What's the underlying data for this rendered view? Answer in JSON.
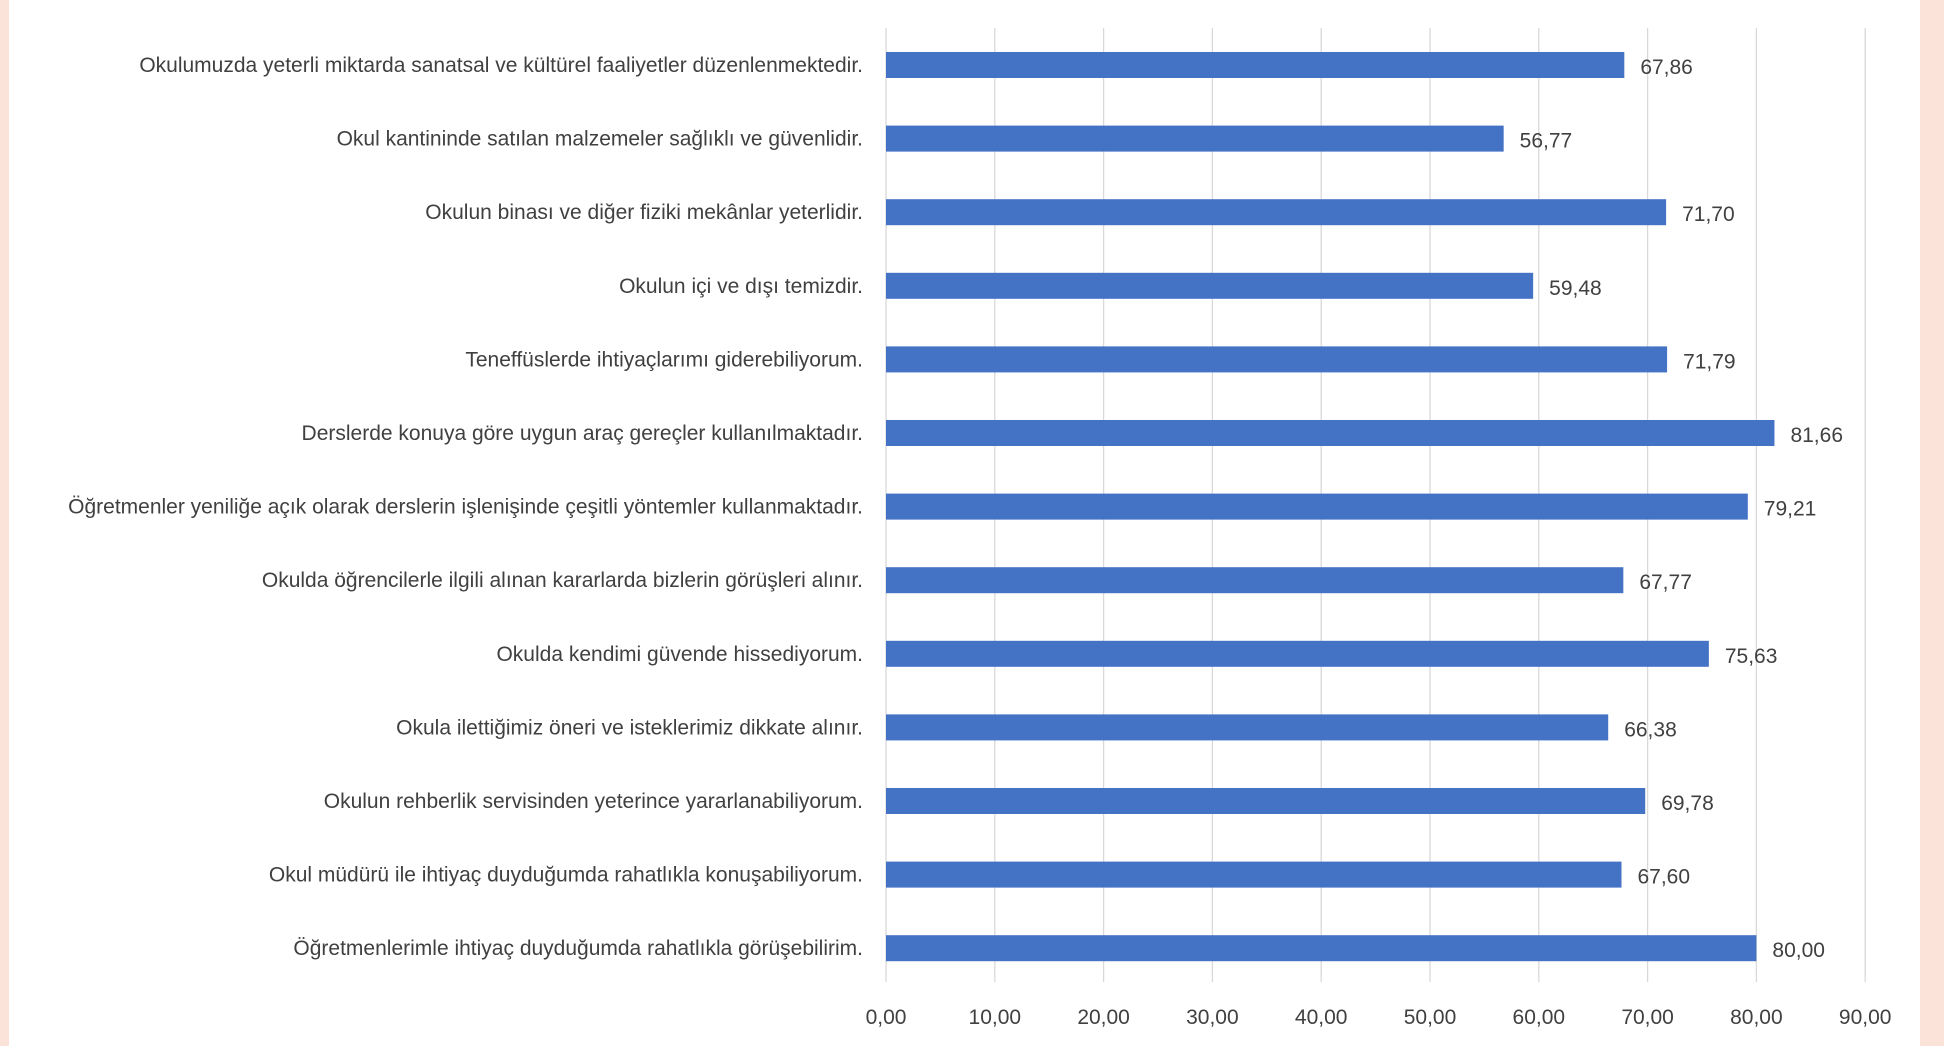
{
  "chart_data": {
    "type": "bar",
    "orientation": "horizontal",
    "bar_color": "#4472c4",
    "categories": [
      "Okulumuzda yeterli miktarda sanatsal ve kültürel faaliyetler düzenlenmektedir.",
      "Okul kantininde satılan malzemeler sağlıklı ve güvenlidir.",
      "Okulun binası ve diğer fiziki mekânlar yeterlidir.",
      "Okulun içi ve dışı temizdir.",
      "Teneffüslerde ihtiyaçlarımı giderebiliyorum.",
      "Derslerde konuya göre uygun araç gereçler kullanılmaktadır.",
      "Öğretmenler yeniliğe açık olarak derslerin işlenişinde çeşitli yöntemler kullanmaktadır.",
      "Okulda öğrencilerle ilgili alınan kararlarda bizlerin görüşleri alınır.",
      "Okulda kendimi güvende hissediyorum.",
      "Okula ilettiğimiz öneri ve isteklerimiz dikkate alınır.",
      "Okulun rehberlik servisinden yeterince yararlanabiliyorum.",
      "Okul müdürü ile ihtiyaç duyduğumda rahatlıkla konuşabiliyorum.",
      "Öğretmenlerimle ihtiyaç duyduğumda rahatlıkla görüşebilirim."
    ],
    "values": [
      67.86,
      56.77,
      71.7,
      59.48,
      71.79,
      81.66,
      79.21,
      67.77,
      75.63,
      66.38,
      69.78,
      67.6,
      80.0
    ],
    "value_labels": [
      "67,86",
      "56,77",
      "71,70",
      "59,48",
      "71,79",
      "81,66",
      "79,21",
      "67,77",
      "75,63",
      "66,38",
      "69,78",
      "67,60",
      "80,00"
    ],
    "x_ticks": [
      0,
      10,
      20,
      30,
      40,
      50,
      60,
      70,
      80,
      90
    ],
    "x_tick_labels": [
      "0,00",
      "10,00",
      "20,00",
      "30,00",
      "40,00",
      "50,00",
      "60,00",
      "70,00",
      "80,00",
      "90,00"
    ],
    "xlim": [
      0,
      90
    ],
    "grid": true,
    "title": "",
    "xlabel": "",
    "ylabel": ""
  }
}
